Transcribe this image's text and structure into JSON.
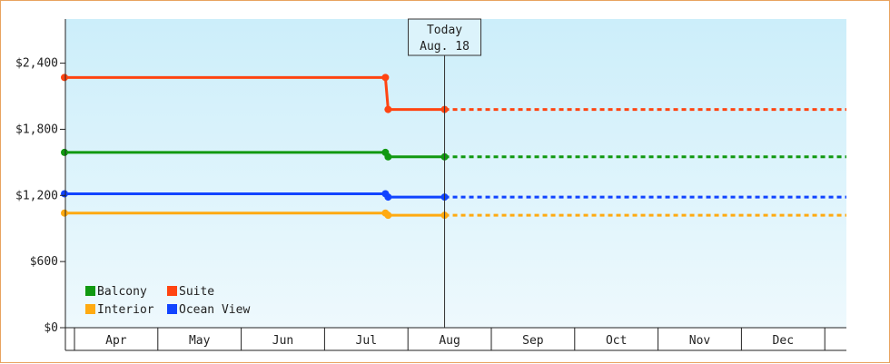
{
  "chart_data": {
    "type": "line",
    "title": "",
    "xlabel": "",
    "ylabel": "",
    "ylim": [
      0,
      2800
    ],
    "yticks": [
      0,
      600,
      1200,
      1800,
      2400
    ],
    "ytick_labels": [
      "$0",
      "$600",
      "$1,200",
      "$1,800",
      "$2,400"
    ],
    "categories": [
      "Apr",
      "May",
      "Jun",
      "Jul",
      "Aug",
      "Sep",
      "Oct",
      "Nov",
      "Dec"
    ],
    "today": {
      "label_line1": "Today",
      "label_line2": "Aug. 18",
      "x": "Aug. 18"
    },
    "legend": {
      "position": "bottom-left"
    },
    "grid": false,
    "background": {
      "top": "#cceefa",
      "bottom": "#eef9fd"
    },
    "series": [
      {
        "name": "Suite",
        "color": "#ff4411",
        "points": [
          {
            "x": "Apr 1",
            "y": 2270
          },
          {
            "x": "Jul 27",
            "y": 2270
          },
          {
            "x": "Jul 28",
            "y": 1980
          },
          {
            "x": "Aug 18",
            "y": 1980
          }
        ],
        "projected": 1980
      },
      {
        "name": "Balcony",
        "color": "#119911",
        "points": [
          {
            "x": "Apr 1",
            "y": 1590
          },
          {
            "x": "Jul 27",
            "y": 1590
          },
          {
            "x": "Jul 28",
            "y": 1550
          },
          {
            "x": "Aug 18",
            "y": 1550
          }
        ],
        "projected": 1550
      },
      {
        "name": "Ocean View",
        "color": "#1144ff",
        "points": [
          {
            "x": "Apr 1",
            "y": 1215
          },
          {
            "x": "Jul 27",
            "y": 1215
          },
          {
            "x": "Jul 28",
            "y": 1185
          },
          {
            "x": "Aug 18",
            "y": 1185
          }
        ],
        "projected": 1185
      },
      {
        "name": "Interior",
        "color": "#ffaa11",
        "points": [
          {
            "x": "Apr 1",
            "y": 1040
          },
          {
            "x": "Jul 27",
            "y": 1040
          },
          {
            "x": "Jul 28",
            "y": 1020
          },
          {
            "x": "Aug 18",
            "y": 1020
          }
        ],
        "projected": 1020
      }
    ],
    "legend_order": [
      "Balcony",
      "Suite",
      "Interior",
      "Ocean View"
    ]
  }
}
